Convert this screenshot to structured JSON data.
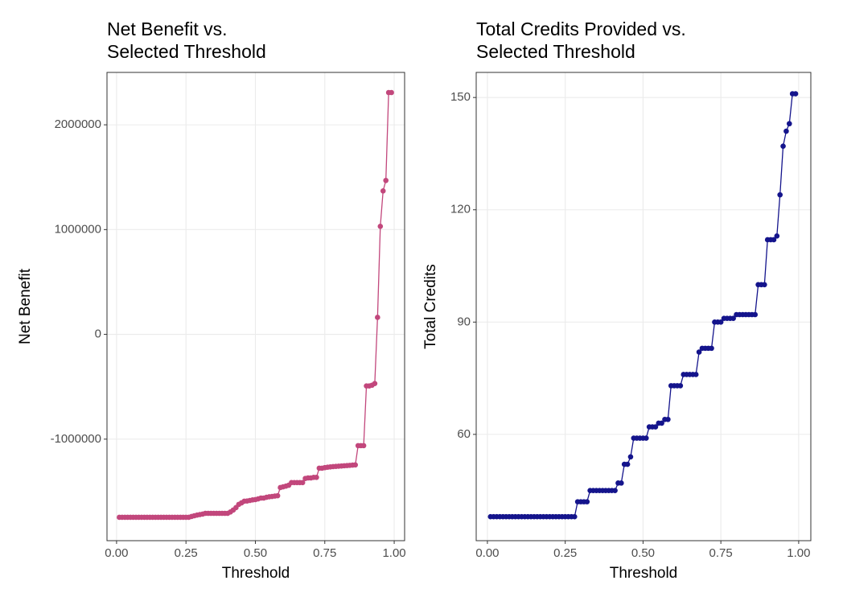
{
  "chart_data": [
    {
      "type": "line",
      "title": [
        "Net Benefit vs.",
        "Selected Threshold"
      ],
      "x_label": "Threshold",
      "y_label": "Net Benefit",
      "x": [
        0.01,
        0.02,
        0.03,
        0.04,
        0.05,
        0.06,
        0.07,
        0.08,
        0.09,
        0.1,
        0.11,
        0.12,
        0.13,
        0.14,
        0.15,
        0.16,
        0.17,
        0.18,
        0.19,
        0.2,
        0.21,
        0.22,
        0.23,
        0.24,
        0.25,
        0.26,
        0.27,
        0.28,
        0.29,
        0.3,
        0.31,
        0.32,
        0.33,
        0.34,
        0.35,
        0.36,
        0.37,
        0.38,
        0.39,
        0.4,
        0.41,
        0.42,
        0.43,
        0.44,
        0.45,
        0.46,
        0.47,
        0.48,
        0.49,
        0.5,
        0.51,
        0.52,
        0.53,
        0.54,
        0.55,
        0.56,
        0.57,
        0.58,
        0.59,
        0.6,
        0.61,
        0.62,
        0.63,
        0.64,
        0.65,
        0.66,
        0.67,
        0.68,
        0.69,
        0.7,
        0.71,
        0.72,
        0.73,
        0.74,
        0.75,
        0.76,
        0.77,
        0.78,
        0.79,
        0.8,
        0.81,
        0.82,
        0.83,
        0.84,
        0.85,
        0.86,
        0.87,
        0.88,
        0.89,
        0.9,
        0.91,
        0.92,
        0.93,
        0.94,
        0.95,
        0.96,
        0.97,
        0.98,
        0.99
      ],
      "series": [
        {
          "color": "#c2477c",
          "values": [
            -1746000,
            -1746000,
            -1746000,
            -1746000,
            -1746000,
            -1746000,
            -1746000,
            -1746000,
            -1746000,
            -1746000,
            -1746000,
            -1746000,
            -1746000,
            -1746000,
            -1746000,
            -1746000,
            -1746000,
            -1746000,
            -1746000,
            -1746000,
            -1746000,
            -1746000,
            -1746000,
            -1746000,
            -1746000,
            -1746000,
            -1738000,
            -1731000,
            -1725000,
            -1720000,
            -1715000,
            -1708000,
            -1708000,
            -1708000,
            -1708000,
            -1708000,
            -1708000,
            -1708000,
            -1708000,
            -1708000,
            -1695000,
            -1677000,
            -1654000,
            -1623000,
            -1608000,
            -1592000,
            -1590000,
            -1585000,
            -1580000,
            -1577000,
            -1570000,
            -1562000,
            -1562000,
            -1555000,
            -1550000,
            -1547000,
            -1543000,
            -1540000,
            -1462000,
            -1455000,
            -1448000,
            -1440000,
            -1415000,
            -1415000,
            -1415000,
            -1415000,
            -1415000,
            -1375000,
            -1370000,
            -1370000,
            -1365000,
            -1365000,
            -1277000,
            -1277000,
            -1272000,
            -1268000,
            -1265000,
            -1262000,
            -1260000,
            -1258000,
            -1256000,
            -1254000,
            -1252000,
            -1250000,
            -1248000,
            -1246000,
            -1062000,
            -1062000,
            -1062000,
            -492000,
            -492000,
            -485000,
            -469000,
            162000,
            1031000,
            1369000,
            1469000,
            2308000,
            2308000
          ]
        }
      ],
      "xlim": [
        -0.0345,
        1.0375
      ],
      "ylim": [
        -1969000,
        2500000
      ],
      "xticks": [
        {
          "value": 0,
          "label": "0.00"
        },
        {
          "value": 0.25,
          "label": "0.25"
        },
        {
          "value": 0.5,
          "label": "0.50"
        },
        {
          "value": 0.75,
          "label": "0.75"
        },
        {
          "value": 1,
          "label": "1.00"
        }
      ],
      "yticks": [
        -1000000,
        0,
        1000000,
        2000000
      ],
      "grid": true
    },
    {
      "type": "line",
      "title": [
        "Total Credits Provided vs.",
        "Selected Threshold"
      ],
      "x_label": "Threshold",
      "y_label": "Total Credits",
      "x": [
        0.01,
        0.02,
        0.03,
        0.04,
        0.05,
        0.06,
        0.07,
        0.08,
        0.09,
        0.1,
        0.11,
        0.12,
        0.13,
        0.14,
        0.15,
        0.16,
        0.17,
        0.18,
        0.19,
        0.2,
        0.21,
        0.22,
        0.23,
        0.24,
        0.25,
        0.26,
        0.27,
        0.28,
        0.29,
        0.3,
        0.31,
        0.32,
        0.33,
        0.34,
        0.35,
        0.36,
        0.37,
        0.38,
        0.39,
        0.4,
        0.41,
        0.42,
        0.43,
        0.44,
        0.45,
        0.46,
        0.47,
        0.48,
        0.49,
        0.5,
        0.51,
        0.52,
        0.53,
        0.54,
        0.55,
        0.56,
        0.57,
        0.58,
        0.59,
        0.6,
        0.61,
        0.62,
        0.63,
        0.64,
        0.65,
        0.66,
        0.67,
        0.68,
        0.69,
        0.7,
        0.71,
        0.72,
        0.73,
        0.74,
        0.75,
        0.76,
        0.77,
        0.78,
        0.79,
        0.8,
        0.81,
        0.82,
        0.83,
        0.84,
        0.85,
        0.86,
        0.87,
        0.88,
        0.89,
        0.9,
        0.91,
        0.92,
        0.93,
        0.94,
        0.95,
        0.96,
        0.97,
        0.98,
        0.99
      ],
      "series": [
        {
          "color": "#14148c",
          "values": [
            38,
            38,
            38,
            38,
            38,
            38,
            38,
            38,
            38,
            38,
            38,
            38,
            38,
            38,
            38,
            38,
            38,
            38,
            38,
            38,
            38,
            38,
            38,
            38,
            38,
            38,
            38,
            38,
            42,
            42,
            42,
            42,
            45,
            45,
            45,
            45,
            45,
            45,
            45,
            45,
            45,
            47,
            47,
            52,
            52,
            54,
            59,
            59,
            59,
            59,
            59,
            62,
            62,
            62,
            63,
            63,
            64,
            64,
            73,
            73,
            73,
            73,
            76,
            76,
            76,
            76,
            76,
            82,
            83,
            83,
            83,
            83,
            90,
            90,
            90,
            91,
            91,
            91,
            91,
            92,
            92,
            92,
            92,
            92,
            92,
            92,
            100,
            100,
            100,
            112,
            112,
            112,
            113,
            124,
            137,
            141,
            143,
            151,
            151
          ]
        }
      ],
      "xlim": [
        -0.036,
        1.039
      ],
      "ylim": [
        31.6,
        156.7
      ],
      "xticks": [
        {
          "value": 0,
          "label": "0.00"
        },
        {
          "value": 0.25,
          "label": "0.25"
        },
        {
          "value": 0.5,
          "label": "0.50"
        },
        {
          "value": 0.75,
          "label": "0.75"
        },
        {
          "value": 1,
          "label": "1.00"
        }
      ],
      "yticks": [
        60,
        90,
        120,
        150
      ],
      "grid": true
    }
  ]
}
